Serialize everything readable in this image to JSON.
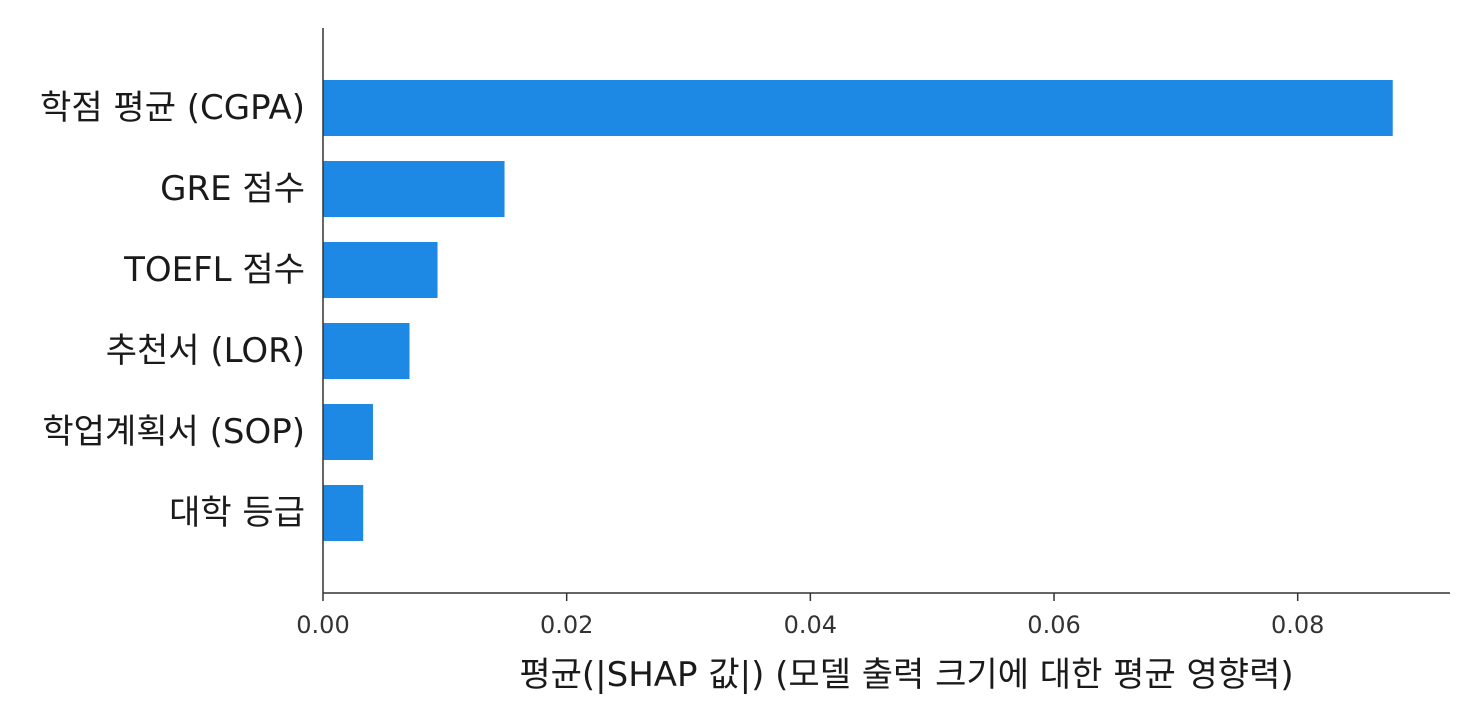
{
  "chart_data": {
    "type": "bar",
    "orientation": "horizontal",
    "categories": [
      "학점 평균 (CGPA)",
      "GRE 점수",
      "TOEFL 점수",
      "추천서 (LOR)",
      "학업계획서 (SOP)",
      "대학 등급"
    ],
    "values": [
      0.0878,
      0.0149,
      0.0094,
      0.0071,
      0.0041,
      0.0033
    ],
    "xlabel": "평균(|SHAP 값|) (모델 출력 크기에 대한 평균 영향력)",
    "ylabel": "",
    "title": "",
    "xticks": [
      0.0,
      0.02,
      0.04,
      0.06,
      0.08
    ],
    "xtick_labels": [
      "0.00",
      "0.02",
      "0.04",
      "0.06",
      "0.08"
    ],
    "xlim": [
      0.0,
      0.0925
    ],
    "grid": false,
    "bar_color": "#1e88e5"
  }
}
